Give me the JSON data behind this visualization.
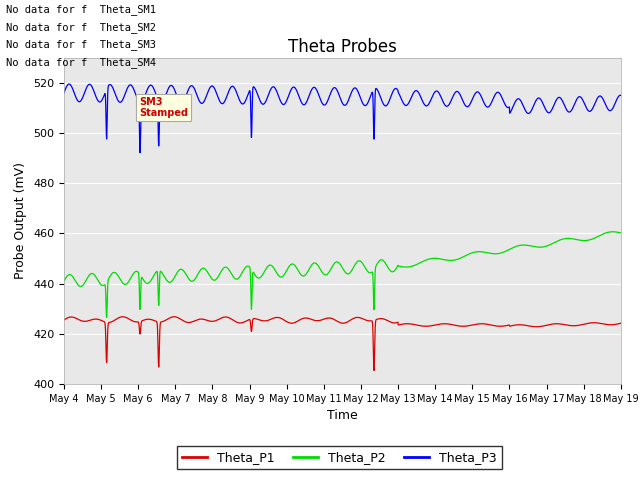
{
  "title": "Theta Probes",
  "xlabel": "Time",
  "ylabel": "Probe Output (mV)",
  "ylim": [
    400,
    530
  ],
  "yticks": [
    400,
    420,
    440,
    460,
    480,
    500,
    520
  ],
  "x_tick_labels": [
    "May 4",
    "May 5",
    "May 6",
    "May 7",
    "May 8",
    "May 9",
    "May 10",
    "May 11",
    "May 12",
    "May 13",
    "May 14",
    "May 15",
    "May 16",
    "May 17",
    "May 18",
    "May 19"
  ],
  "no_data_texts": [
    "No data for f  Theta_SM1",
    "No data for f  Theta_SM2",
    "No data for f  Theta_SM3",
    "No data for f  Theta_SM4"
  ],
  "bg_color": "#e8e8e8",
  "line_colors": {
    "P1": "#dd0000",
    "P2": "#00dd00",
    "P3": "#0000ff"
  },
  "legend_labels": [
    "Theta_P1",
    "Theta_P2",
    "Theta_P3"
  ],
  "tooltip_text": "SM3\nStamped",
  "tooltip_color": "#cc0000"
}
